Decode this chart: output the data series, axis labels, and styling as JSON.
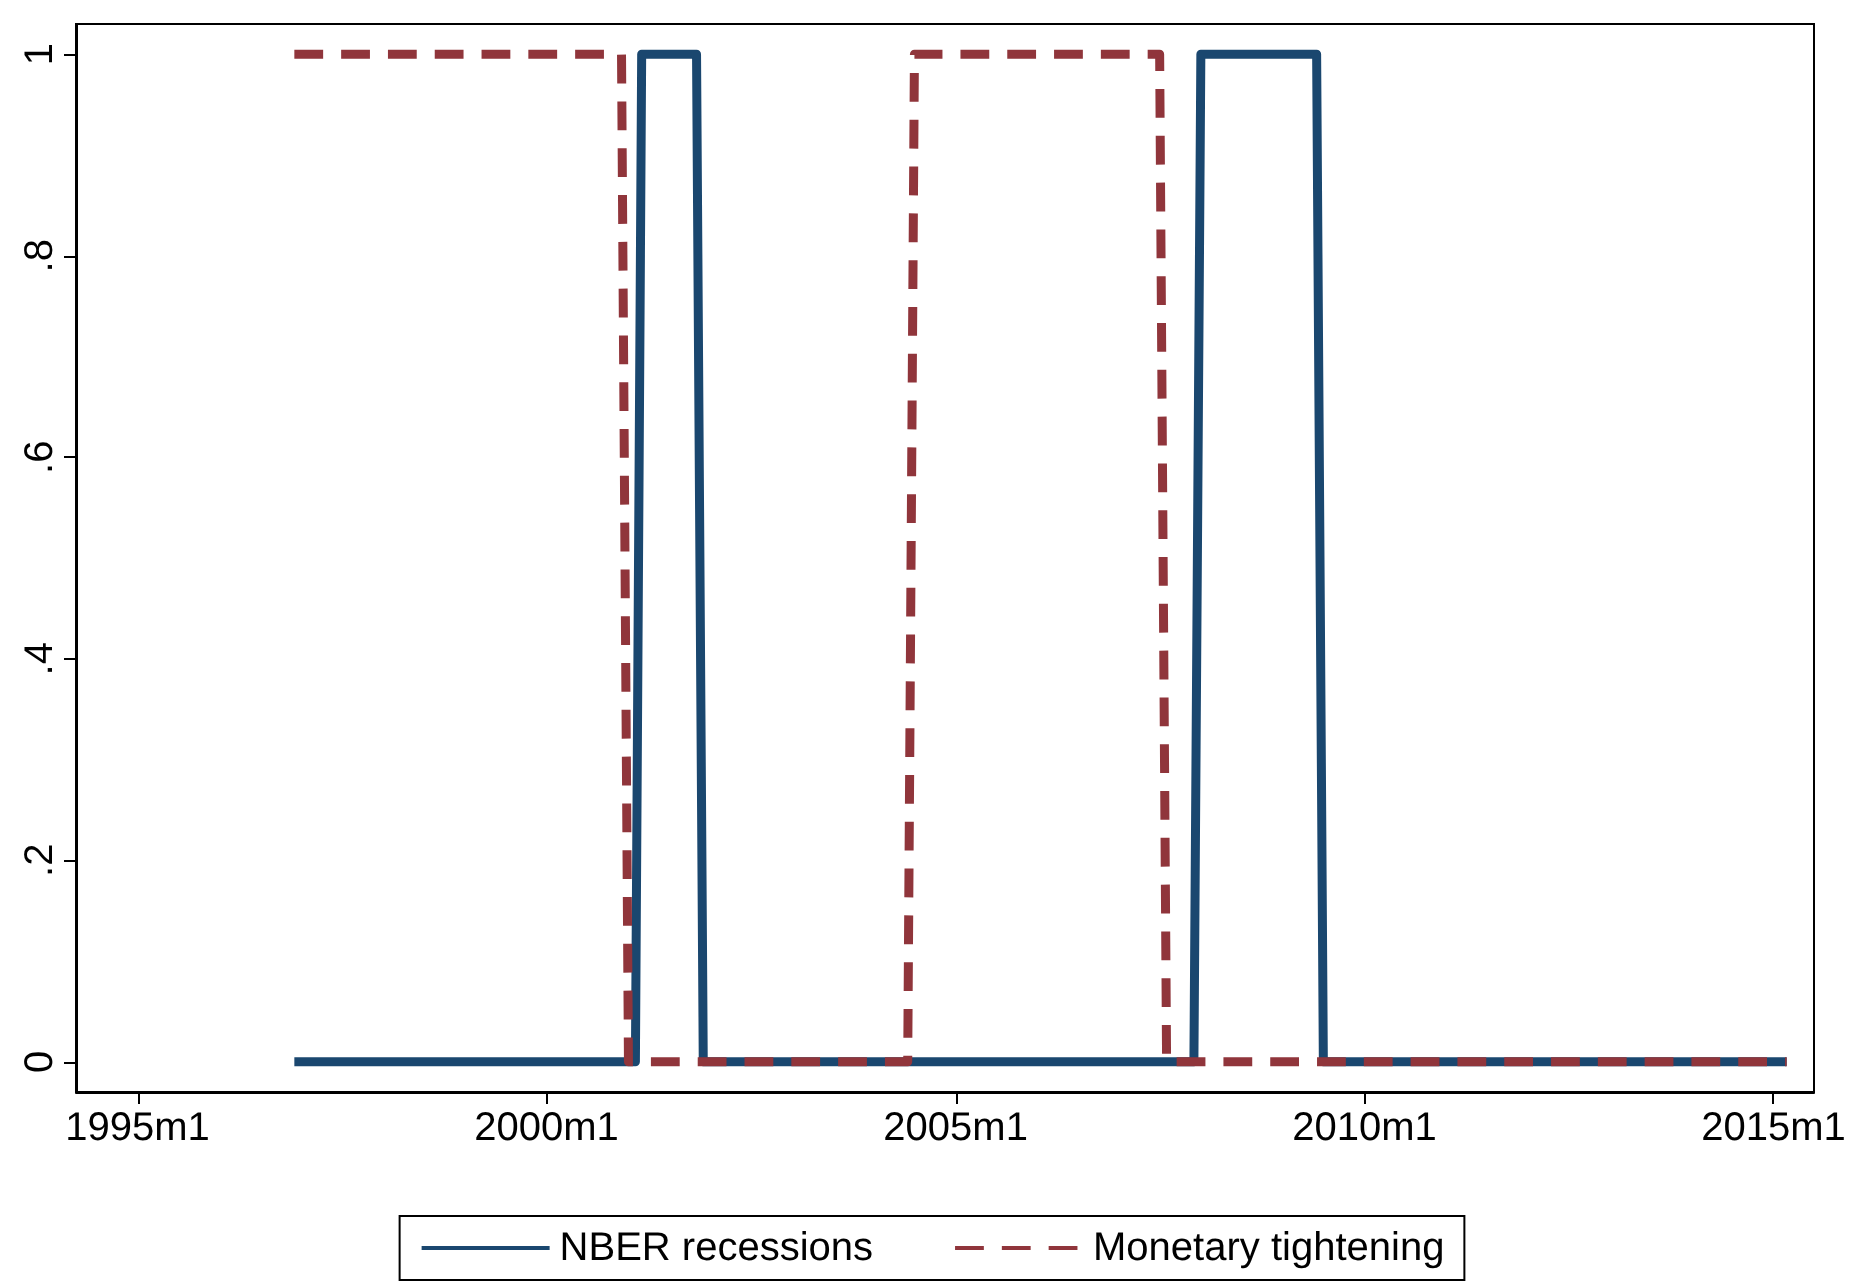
{
  "chart_data": {
    "type": "line",
    "series": [
      {
        "name": "NBER recessions",
        "color": "#1a476f",
        "line_style": "solid",
        "x": [
          "1996-12",
          "2001-02",
          "2001-03",
          "2001-11",
          "2001-12",
          "2007-12",
          "2008-01",
          "2009-06",
          "2009-07",
          "2015-03"
        ],
        "values": [
          0,
          0,
          1,
          1,
          0,
          0,
          1,
          1,
          0,
          0
        ]
      },
      {
        "name": "Monetary tightening",
        "color": "#90353b",
        "line_style": "dashed",
        "x": [
          "1996-12",
          "2000-12",
          "2001-01",
          "2004-06",
          "2004-07",
          "2007-07",
          "2007-08",
          "2015-03"
        ],
        "values": [
          1,
          1,
          0,
          0,
          1,
          1,
          0,
          0
        ]
      }
    ],
    "xlim": [
      "1994-04",
      "2015-07"
    ],
    "xticks": [
      {
        "value": "1995-01",
        "label": "1995m1"
      },
      {
        "value": "2000-01",
        "label": "2000m1"
      },
      {
        "value": "2005-01",
        "label": "2005m1"
      },
      {
        "value": "2010-01",
        "label": "2010m1"
      },
      {
        "value": "2015-01",
        "label": "2015m1"
      }
    ],
    "ylim": [
      -0.03,
      1.03
    ],
    "yticks": [
      0,
      {
        "value": 0.2,
        "label": ".2"
      },
      {
        "value": 0.4,
        "label": ".4"
      },
      {
        "value": 0.6,
        "label": ".6"
      },
      {
        "value": 0.8,
        "label": ".8"
      },
      1
    ],
    "grid": false,
    "legend": "bottom",
    "marker": "none"
  }
}
